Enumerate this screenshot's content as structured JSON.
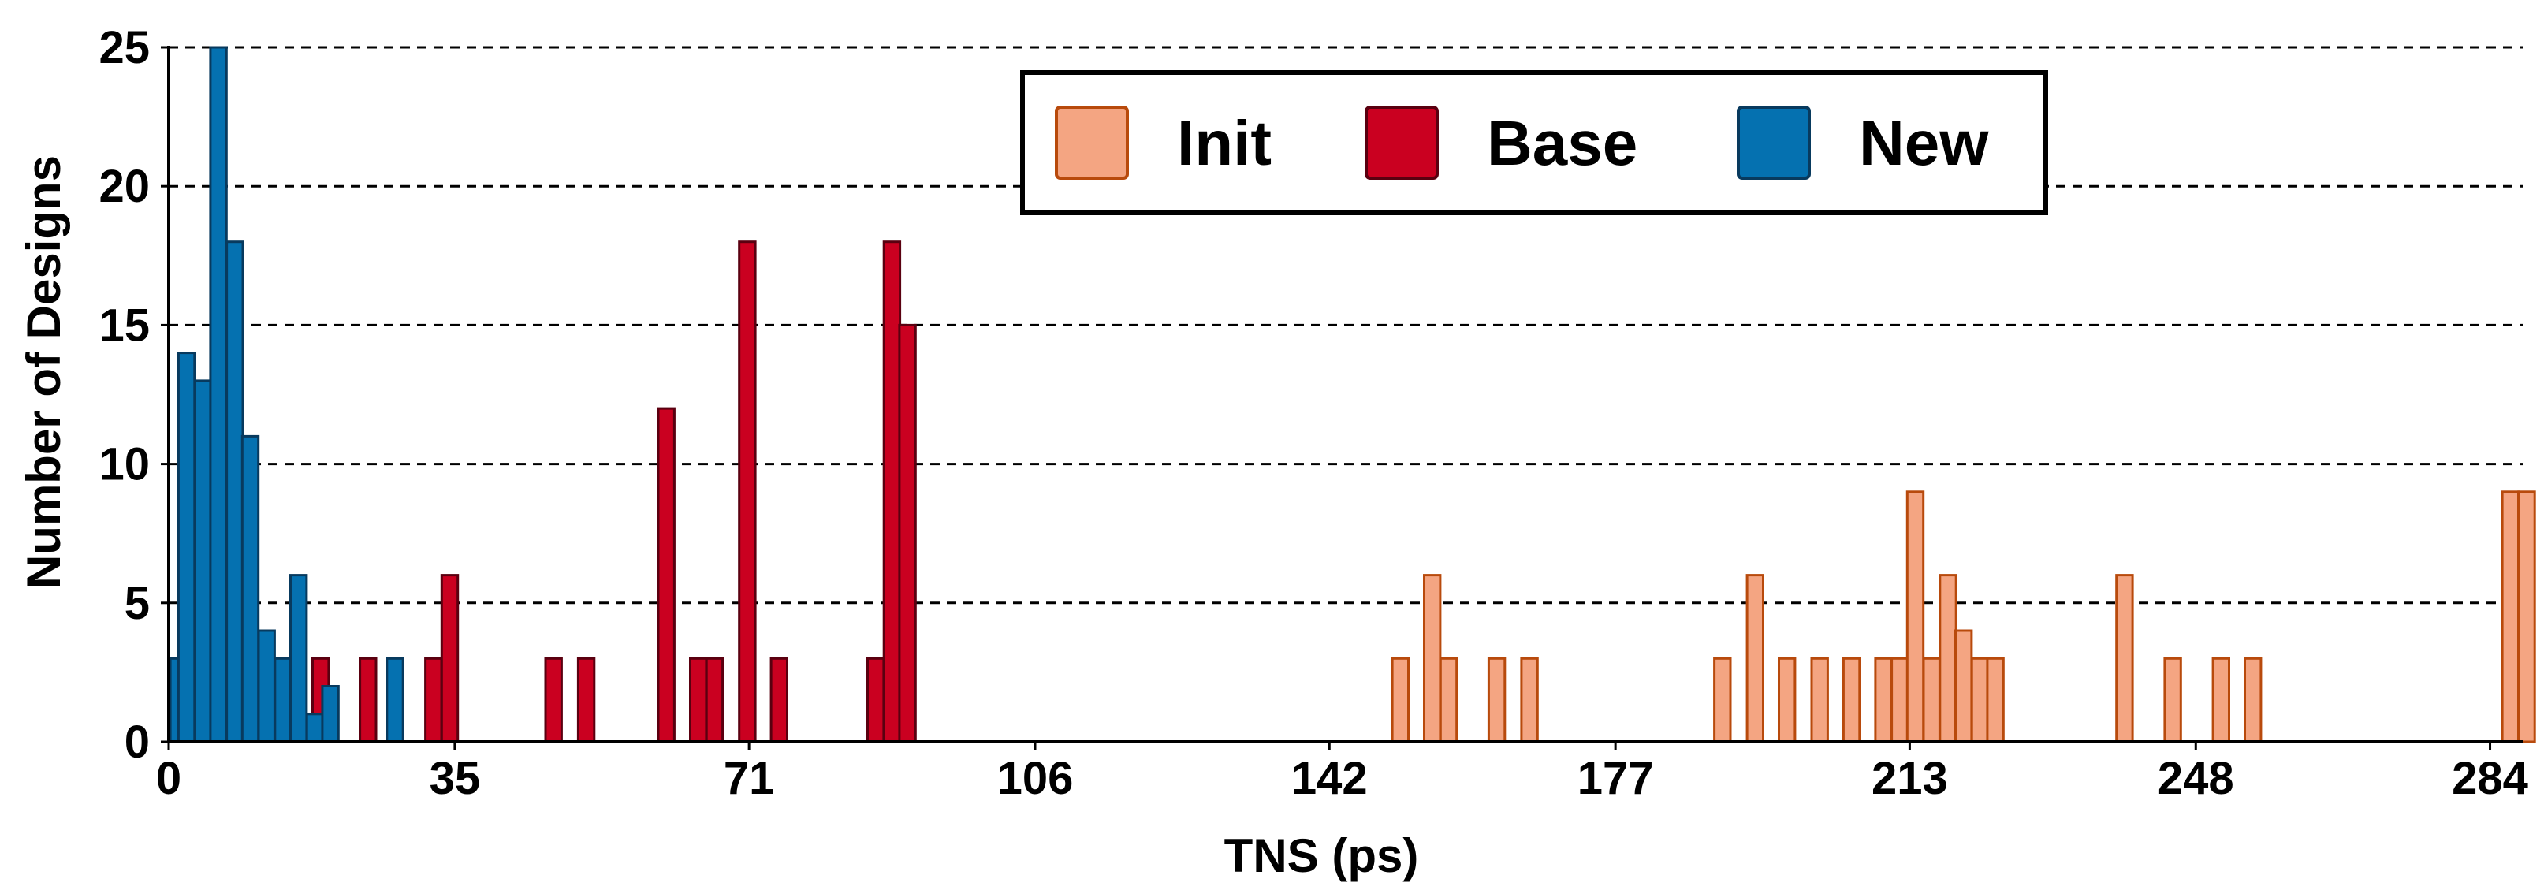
{
  "chart_data": {
    "type": "bar",
    "xlabel": "TNS (ps)",
    "ylabel": "Number of Designs",
    "xlim": [
      0,
      288
    ],
    "ylim": [
      0,
      25
    ],
    "x_ticks": [
      0,
      35,
      71,
      106,
      142,
      177,
      213,
      248,
      284
    ],
    "y_ticks": [
      0,
      5,
      10,
      15,
      20,
      25
    ],
    "bin_width": 1.97,
    "grid": "horizontal-dashed",
    "legend_position": "top-center",
    "series": [
      {
        "name": "Init",
        "color": "#f4a582",
        "edge_color": "#b84a0c",
        "points": [
          {
            "x": 149.7,
            "y": 3
          },
          {
            "x": 153.6,
            "y": 6
          },
          {
            "x": 155.6,
            "y": 3
          },
          {
            "x": 161.5,
            "y": 3
          },
          {
            "x": 165.5,
            "y": 3
          },
          {
            "x": 189.1,
            "y": 3
          },
          {
            "x": 193.1,
            "y": 6
          },
          {
            "x": 197.0,
            "y": 3
          },
          {
            "x": 201.0,
            "y": 3
          },
          {
            "x": 204.9,
            "y": 3
          },
          {
            "x": 208.8,
            "y": 3
          },
          {
            "x": 210.8,
            "y": 3
          },
          {
            "x": 212.7,
            "y": 9
          },
          {
            "x": 214.7,
            "y": 3
          },
          {
            "x": 216.7,
            "y": 6
          },
          {
            "x": 218.6,
            "y": 4
          },
          {
            "x": 220.6,
            "y": 3
          },
          {
            "x": 222.5,
            "y": 3
          },
          {
            "x": 238.3,
            "y": 6
          },
          {
            "x": 244.2,
            "y": 3
          },
          {
            "x": 250.1,
            "y": 3
          },
          {
            "x": 254.0,
            "y": 3
          },
          {
            "x": 285.5,
            "y": 9
          },
          {
            "x": 287.5,
            "y": 9
          }
        ]
      },
      {
        "name": "Base",
        "color": "#ca0020",
        "edge_color": "#5a0010",
        "points": [
          {
            "x": 17.6,
            "y": 3
          },
          {
            "x": 23.4,
            "y": 3
          },
          {
            "x": 31.4,
            "y": 3
          },
          {
            "x": 33.4,
            "y": 6
          },
          {
            "x": 46.1,
            "y": 3
          },
          {
            "x": 50.1,
            "y": 3
          },
          {
            "x": 59.9,
            "y": 12
          },
          {
            "x": 63.8,
            "y": 3
          },
          {
            "x": 65.8,
            "y": 3
          },
          {
            "x": 69.8,
            "y": 18
          },
          {
            "x": 73.7,
            "y": 3
          },
          {
            "x": 85.5,
            "y": 3
          },
          {
            "x": 87.5,
            "y": 18
          },
          {
            "x": 89.4,
            "y": 15
          }
        ]
      },
      {
        "name": "New",
        "color": "#0571b0",
        "edge_color": "#083a5e",
        "points": [
          {
            "x": 0.2,
            "y": 3
          },
          {
            "x": 1.2,
            "y": 14
          },
          {
            "x": 3.2,
            "y": 13
          },
          {
            "x": 5.1,
            "y": 25
          },
          {
            "x": 7.1,
            "y": 18
          },
          {
            "x": 9.0,
            "y": 11
          },
          {
            "x": 11.0,
            "y": 4
          },
          {
            "x": 13.0,
            "y": 3
          },
          {
            "x": 14.9,
            "y": 6
          },
          {
            "x": 16.9,
            "y": 1
          },
          {
            "x": 18.8,
            "y": 2
          },
          {
            "x": 26.7,
            "y": 3
          }
        ]
      }
    ]
  }
}
